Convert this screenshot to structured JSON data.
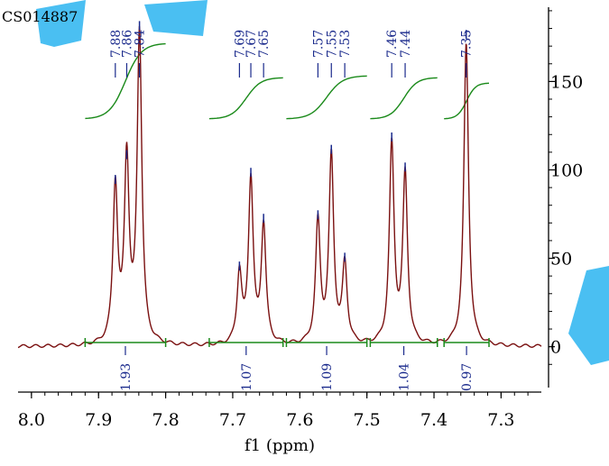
{
  "chart_data": {
    "type": "line",
    "sample_id": "CS014887",
    "xlabel": "f1 (ppm)",
    "ylabel": "",
    "xlim": [
      8.02,
      7.24
    ],
    "ylim": [
      -17,
      192
    ],
    "x_ticks": [
      {
        "value": 8.0,
        "label": "8.0"
      },
      {
        "value": 7.9,
        "label": "7.9"
      },
      {
        "value": 7.8,
        "label": "7.8"
      },
      {
        "value": 7.7,
        "label": "7.7"
      },
      {
        "value": 7.6,
        "label": "7.6"
      },
      {
        "value": 7.5,
        "label": "7.5"
      },
      {
        "value": 7.4,
        "label": "7.4"
      },
      {
        "value": 7.3,
        "label": "7.3"
      }
    ],
    "y_ticks": [
      {
        "value": 0,
        "label": "0"
      },
      {
        "value": 50,
        "label": "50"
      },
      {
        "value": 100,
        "label": "100"
      },
      {
        "value": 150,
        "label": "150"
      }
    ],
    "peaks": [
      {
        "ppm": 7.875,
        "height": 89
      },
      {
        "ppm": 7.858,
        "height": 103
      },
      {
        "ppm": 7.839,
        "height": 176
      },
      {
        "ppm": 7.69,
        "height": 40
      },
      {
        "ppm": 7.673,
        "height": 93
      },
      {
        "ppm": 7.654,
        "height": 67
      },
      {
        "ppm": 7.573,
        "height": 69
      },
      {
        "ppm": 7.553,
        "height": 106
      },
      {
        "ppm": 7.533,
        "height": 45
      },
      {
        "ppm": 7.463,
        "height": 113
      },
      {
        "ppm": 7.443,
        "height": 96
      },
      {
        "ppm": 7.352,
        "height": 171
      }
    ],
    "peak_labels": [
      {
        "ppm": 7.875,
        "label": "7.88"
      },
      {
        "ppm": 7.858,
        "label": "7.86"
      },
      {
        "ppm": 7.839,
        "label": "7.84"
      },
      {
        "ppm": 7.69,
        "label": "7.69"
      },
      {
        "ppm": 7.673,
        "label": "7.67"
      },
      {
        "ppm": 7.654,
        "label": "7.65"
      },
      {
        "ppm": 7.573,
        "label": "7.57"
      },
      {
        "ppm": 7.553,
        "label": "7.55"
      },
      {
        "ppm": 7.533,
        "label": "7.53"
      },
      {
        "ppm": 7.463,
        "label": "7.46"
      },
      {
        "ppm": 7.443,
        "label": "7.44"
      },
      {
        "ppm": 7.352,
        "label": "7.35"
      }
    ],
    "integrals": [
      {
        "from": 7.92,
        "to": 7.8,
        "value": "1.93"
      },
      {
        "from": 7.735,
        "to": 7.625,
        "value": "1.07"
      },
      {
        "from": 7.62,
        "to": 7.5,
        "value": "1.09"
      },
      {
        "from": 7.495,
        "to": 7.395,
        "value": "1.04"
      },
      {
        "from": 7.385,
        "to": 7.318,
        "value": "0.97"
      }
    ],
    "colors": {
      "spectrum": "#7a1010",
      "integral": "#1a8a1a",
      "label": "#1a2a8c",
      "watermark": "#2ab4f0"
    }
  }
}
